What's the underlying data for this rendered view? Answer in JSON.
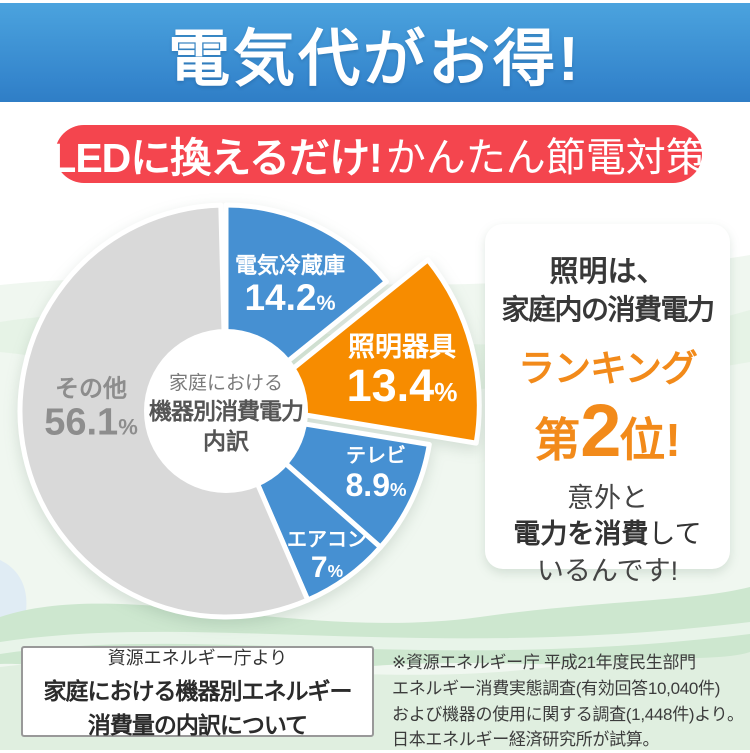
{
  "header": {
    "title": "電気代がお得!"
  },
  "banner": {
    "bold": "LEDに換えるだけ!",
    "regular": "かんたん節電対策"
  },
  "chart_data": {
    "type": "pie",
    "title": "家庭における機器別消費電力内訳",
    "unit": "%",
    "center_label": {
      "line1": "家庭における",
      "line2": "機器別消費電力",
      "line3": "内訳"
    },
    "legend_position": "none",
    "slices": [
      {
        "name": "電気冷蔵庫",
        "value": 14.2,
        "value_label": "14.2",
        "color": "#4690d2",
        "highlight": false
      },
      {
        "name": "照明器具",
        "value": 13.4,
        "value_label": "13.4",
        "color": "#f78c00",
        "highlight": true,
        "explode": 22,
        "radius": 232
      },
      {
        "name": "テレビ",
        "value": 8.9,
        "value_label": "8.9",
        "color": "#4690d2",
        "highlight": false
      },
      {
        "name": "エアコン",
        "value": 7,
        "value_label": "7",
        "color": "#4690d2",
        "highlight": false
      },
      {
        "name": "その他",
        "value": 56.1,
        "value_label": "56.1",
        "color": "#d9d9d9",
        "highlight": false
      }
    ]
  },
  "callout": {
    "line1": "照明は、",
    "line2": "家庭内の消費電力",
    "line3": "ランキング",
    "rank_pre": "第",
    "rank_num": "2",
    "rank_post": "位!",
    "line5": "意外と",
    "line6_bold": "電力を消費",
    "line6_rest": "して",
    "line7": "いるんです!"
  },
  "source_box": {
    "line1": "資源エネルギー庁より",
    "line2": "家庭における機器別エネルギー",
    "line3": "消費量の内訳について"
  },
  "footnote": {
    "lines": [
      "※資源エネルギー庁 平成21年度民生部門",
      "エネルギー消費実態調査(有効回答10,040件)",
      "および機器の使用に関する調査(1,448件)より。",
      "日本エネルギー経済研究所が試算。"
    ]
  },
  "colors": {
    "header_blue": "#3d8fd2",
    "banner_red": "#f4454e",
    "slice_blue": "#4690d2",
    "slice_orange": "#f78c00",
    "slice_gray": "#d9d9d9",
    "accent_orange": "#f28a1a",
    "wave_green": "#cde7cf"
  }
}
